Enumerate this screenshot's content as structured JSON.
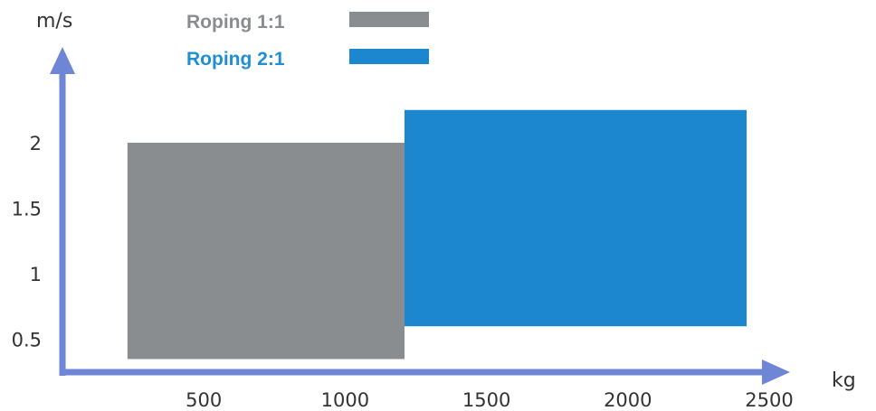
{
  "chart_data": {
    "type": "area",
    "title": "",
    "xlabel": "kg",
    "ylabel": "m/s",
    "xlim": [
      0,
      2500
    ],
    "ylim": [
      0.25,
      2.4
    ],
    "x_ticks": [
      "500",
      "1000",
      "1500",
      "2000",
      "2500"
    ],
    "y_ticks": [
      "0.5",
      "1",
      "1.5",
      "2"
    ],
    "grid": false,
    "legend_position": "top-left",
    "series": [
      {
        "name": "Roping 1:1",
        "color": "#8a8d90",
        "label_color": "#8a8d90",
        "x": [
          230,
          1210
        ],
        "y": [
          0.35,
          2.0
        ]
      },
      {
        "name": "Roping 2:1",
        "color": "#1c87cf",
        "label_color": "#1e8fd6",
        "x": [
          1210,
          2420
        ],
        "y": [
          0.6,
          2.25
        ]
      }
    ],
    "axis_color": "#6f86d6"
  }
}
